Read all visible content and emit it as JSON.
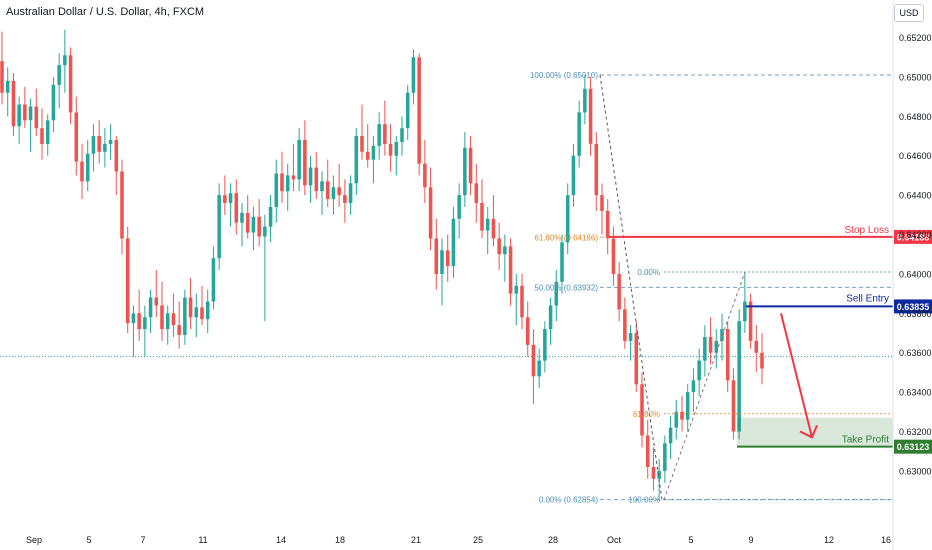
{
  "header": {
    "title": "Australian Dollar / U.S. Dollar, 4h, FXCM",
    "currency_button": "USD"
  },
  "colors": {
    "up": "#26a69a",
    "down": "#ef5350",
    "stop_loss": "#f23645",
    "sell_entry": "#0e2a9e",
    "take_profit": "#2e7d32",
    "fib_blue": "#4a90b8",
    "fib_orange": "#e08a2d",
    "arrow": "#f23645"
  },
  "chart_data": {
    "type": "candlestick",
    "ylim": [
      0.627,
      0.6535
    ],
    "y_ticks": [
      "0.63000",
      "0.63200",
      "0.63400",
      "0.63600",
      "0.63800",
      "0.64000",
      "0.64200",
      "0.64400",
      "0.64600",
      "0.64800",
      "0.65000",
      "0.65200"
    ],
    "x_ticks": [
      "Sep",
      "5",
      "7",
      "11",
      "14",
      "18",
      "21",
      "25",
      "28",
      "Oct",
      "5",
      "9",
      "12",
      "16"
    ],
    "current_price_line": 0.6358,
    "levels": [
      {
        "name": "Stop Loss",
        "price": 0.64188,
        "label": "0.64188"
      },
      {
        "name": "Sell Entry",
        "price": 0.63835,
        "label": "0.63835"
      },
      {
        "name": "Take Profit",
        "price": 0.63123,
        "label": "0.63123"
      }
    ],
    "fib_retracement_1": {
      "levels": [
        {
          "label": "100.00% (0.65010)",
          "price": 0.6501
        },
        {
          "label": "61.80% (0.64186)",
          "price": 0.64186
        },
        {
          "label": "50.00% (0.63932)",
          "price": 0.63932
        },
        {
          "label": "0.00% (0.62854)",
          "price": 0.62854
        }
      ]
    },
    "fib_retracement_2": {
      "levels": [
        {
          "label": "0.00%",
          "price": 0.6401
        },
        {
          "label": "61.80%",
          "price": 0.6329
        },
        {
          "label": "100.00%",
          "price": 0.62854
        }
      ]
    },
    "candles": [
      [
        0.6508,
        0.6523,
        0.6486,
        0.6492
      ],
      [
        0.6492,
        0.6505,
        0.648,
        0.6498
      ],
      [
        0.6498,
        0.6502,
        0.647,
        0.6475
      ],
      [
        0.6475,
        0.649,
        0.6466,
        0.6486
      ],
      [
        0.6486,
        0.6495,
        0.6474,
        0.6478
      ],
      [
        0.6478,
        0.6489,
        0.6462,
        0.6485
      ],
      [
        0.6485,
        0.6494,
        0.647,
        0.6474
      ],
      [
        0.6474,
        0.6484,
        0.6458,
        0.6466
      ],
      [
        0.6466,
        0.6481,
        0.646,
        0.6478
      ],
      [
        0.6478,
        0.65,
        0.6472,
        0.6496
      ],
      [
        0.6496,
        0.6512,
        0.6484,
        0.6506
      ],
      [
        0.6506,
        0.6524,
        0.6492,
        0.6511
      ],
      [
        0.6511,
        0.6515,
        0.6476,
        0.6482
      ],
      [
        0.6482,
        0.649,
        0.645,
        0.6457
      ],
      [
        0.6457,
        0.6466,
        0.6438,
        0.6447
      ],
      [
        0.6447,
        0.6468,
        0.6442,
        0.6461
      ],
      [
        0.6461,
        0.6476,
        0.6452,
        0.647
      ],
      [
        0.647,
        0.6478,
        0.6456,
        0.6462
      ],
      [
        0.6462,
        0.6474,
        0.6454,
        0.6466
      ],
      [
        0.6466,
        0.6476,
        0.6458,
        0.6468
      ],
      [
        0.6468,
        0.647,
        0.644,
        0.6452
      ],
      [
        0.6452,
        0.6458,
        0.641,
        0.6418
      ],
      [
        0.6418,
        0.6424,
        0.637,
        0.6375
      ],
      [
        0.6375,
        0.6384,
        0.6358,
        0.638
      ],
      [
        0.638,
        0.6392,
        0.6366,
        0.6372
      ],
      [
        0.6372,
        0.6384,
        0.6358,
        0.6378
      ],
      [
        0.6378,
        0.6392,
        0.637,
        0.6388
      ],
      [
        0.6388,
        0.6402,
        0.6378,
        0.6384
      ],
      [
        0.6384,
        0.6396,
        0.6366,
        0.6372
      ],
      [
        0.6372,
        0.6384,
        0.6364,
        0.638
      ],
      [
        0.638,
        0.639,
        0.6368,
        0.6374
      ],
      [
        0.6374,
        0.6386,
        0.6362,
        0.6369
      ],
      [
        0.6369,
        0.6392,
        0.6364,
        0.6388
      ],
      [
        0.6388,
        0.6398,
        0.6372,
        0.6378
      ],
      [
        0.6378,
        0.639,
        0.6368,
        0.6383
      ],
      [
        0.6383,
        0.6394,
        0.6374,
        0.6377
      ],
      [
        0.6377,
        0.6392,
        0.637,
        0.6386
      ],
      [
        0.6386,
        0.6414,
        0.6382,
        0.6408
      ],
      [
        0.6408,
        0.6446,
        0.6402,
        0.644
      ],
      [
        0.644,
        0.645,
        0.643,
        0.6436
      ],
      [
        0.6436,
        0.6446,
        0.6424,
        0.6441
      ],
      [
        0.6441,
        0.6448,
        0.642,
        0.6426
      ],
      [
        0.6426,
        0.6436,
        0.6414,
        0.6431
      ],
      [
        0.6431,
        0.644,
        0.6418,
        0.6421
      ],
      [
        0.6421,
        0.6434,
        0.6412,
        0.6429
      ],
      [
        0.6429,
        0.6438,
        0.6414,
        0.6419
      ],
      [
        0.6419,
        0.643,
        0.6376,
        0.6424
      ],
      [
        0.6424,
        0.644,
        0.6416,
        0.6434
      ],
      [
        0.6434,
        0.6458,
        0.6426,
        0.6451
      ],
      [
        0.6451,
        0.6462,
        0.6436,
        0.6442
      ],
      [
        0.6442,
        0.6456,
        0.6432,
        0.645
      ],
      [
        0.645,
        0.6466,
        0.6442,
        0.6448
      ],
      [
        0.6448,
        0.6474,
        0.6442,
        0.6468
      ],
      [
        0.6468,
        0.6478,
        0.644,
        0.6445
      ],
      [
        0.6445,
        0.646,
        0.6436,
        0.6454
      ],
      [
        0.6454,
        0.6462,
        0.6438,
        0.6442
      ],
      [
        0.6442,
        0.6452,
        0.643,
        0.6447
      ],
      [
        0.6447,
        0.6458,
        0.6434,
        0.6438
      ],
      [
        0.6438,
        0.645,
        0.643,
        0.6444
      ],
      [
        0.6444,
        0.6456,
        0.6434,
        0.644
      ],
      [
        0.644,
        0.6448,
        0.6426,
        0.6436
      ],
      [
        0.6436,
        0.645,
        0.643,
        0.6446
      ],
      [
        0.6446,
        0.6474,
        0.644,
        0.647
      ],
      [
        0.647,
        0.6486,
        0.6458,
        0.6462
      ],
      [
        0.6462,
        0.6476,
        0.6454,
        0.6458
      ],
      [
        0.6458,
        0.647,
        0.6446,
        0.6465
      ],
      [
        0.6465,
        0.6482,
        0.6458,
        0.6476
      ],
      [
        0.6476,
        0.6488,
        0.646,
        0.6466
      ],
      [
        0.6466,
        0.6476,
        0.6452,
        0.646
      ],
      [
        0.646,
        0.647,
        0.645,
        0.6467
      ],
      [
        0.6467,
        0.648,
        0.646,
        0.6474
      ],
      [
        0.6474,
        0.6496,
        0.6468,
        0.6492
      ],
      [
        0.6492,
        0.6514,
        0.6486,
        0.651
      ],
      [
        0.651,
        0.6512,
        0.645,
        0.6456
      ],
      [
        0.6456,
        0.6468,
        0.6436,
        0.6444
      ],
      [
        0.6444,
        0.6454,
        0.6412,
        0.6418
      ],
      [
        0.6418,
        0.6428,
        0.6392,
        0.64
      ],
      [
        0.64,
        0.6418,
        0.6384,
        0.6412
      ],
      [
        0.6412,
        0.642,
        0.6396,
        0.6404
      ],
      [
        0.6404,
        0.6434,
        0.6398,
        0.6428
      ],
      [
        0.6428,
        0.6446,
        0.6418,
        0.644
      ],
      [
        0.644,
        0.6472,
        0.6434,
        0.6464
      ],
      [
        0.6464,
        0.647,
        0.644,
        0.6446
      ],
      [
        0.6446,
        0.6456,
        0.6426,
        0.6436
      ],
      [
        0.6436,
        0.6448,
        0.6418,
        0.6422
      ],
      [
        0.6422,
        0.6434,
        0.641,
        0.6428
      ],
      [
        0.6428,
        0.644,
        0.6414,
        0.6418
      ],
      [
        0.6418,
        0.6426,
        0.6402,
        0.641
      ],
      [
        0.641,
        0.642,
        0.6396,
        0.6414
      ],
      [
        0.6414,
        0.6418,
        0.6384,
        0.639
      ],
      [
        0.639,
        0.64,
        0.6374,
        0.6394
      ],
      [
        0.6394,
        0.64,
        0.6372,
        0.6378
      ],
      [
        0.6378,
        0.6386,
        0.6358,
        0.6364
      ],
      [
        0.6364,
        0.6372,
        0.6334,
        0.6348
      ],
      [
        0.6348,
        0.6362,
        0.6342,
        0.6356
      ],
      [
        0.6356,
        0.6376,
        0.635,
        0.6372
      ],
      [
        0.6372,
        0.6388,
        0.6364,
        0.6384
      ],
      [
        0.6384,
        0.6402,
        0.6376,
        0.6396
      ],
      [
        0.6396,
        0.642,
        0.639,
        0.6416
      ],
      [
        0.6416,
        0.6446,
        0.641,
        0.644
      ],
      [
        0.644,
        0.6466,
        0.6434,
        0.646
      ],
      [
        0.646,
        0.6488,
        0.6454,
        0.6482
      ],
      [
        0.6482,
        0.6501,
        0.6476,
        0.6494
      ],
      [
        0.6494,
        0.65,
        0.646,
        0.6466
      ],
      [
        0.6466,
        0.6472,
        0.6432,
        0.644
      ],
      [
        0.644,
        0.6446,
        0.642,
        0.6432
      ],
      [
        0.6432,
        0.6438,
        0.641,
        0.6418
      ],
      [
        0.6418,
        0.6424,
        0.6394,
        0.64
      ],
      [
        0.64,
        0.6406,
        0.6376,
        0.6382
      ],
      [
        0.6382,
        0.6388,
        0.6362,
        0.6366
      ],
      [
        0.6366,
        0.6374,
        0.6356,
        0.637
      ],
      [
        0.637,
        0.6376,
        0.634,
        0.6344
      ],
      [
        0.6344,
        0.635,
        0.6312,
        0.6318
      ],
      [
        0.6318,
        0.6326,
        0.6296,
        0.6302
      ],
      [
        0.6302,
        0.6312,
        0.629,
        0.6296
      ],
      [
        0.6296,
        0.6306,
        0.6285,
        0.63
      ],
      [
        0.63,
        0.6318,
        0.6294,
        0.6314
      ],
      [
        0.6314,
        0.6328,
        0.6306,
        0.6322
      ],
      [
        0.6322,
        0.6336,
        0.6316,
        0.633
      ],
      [
        0.633,
        0.6338,
        0.632,
        0.6326
      ],
      [
        0.6326,
        0.6344,
        0.632,
        0.634
      ],
      [
        0.634,
        0.6352,
        0.633,
        0.6346
      ],
      [
        0.6346,
        0.6362,
        0.6338,
        0.6356
      ],
      [
        0.6356,
        0.6374,
        0.6348,
        0.6368
      ],
      [
        0.6368,
        0.6378,
        0.6354,
        0.636
      ],
      [
        0.636,
        0.6372,
        0.6352,
        0.6366
      ],
      [
        0.6366,
        0.638,
        0.6356,
        0.6372
      ],
      [
        0.6372,
        0.6376,
        0.634,
        0.6346
      ],
      [
        0.6346,
        0.6352,
        0.6316,
        0.632
      ],
      [
        0.632,
        0.6382,
        0.6316,
        0.6376
      ],
      [
        0.6376,
        0.6401,
        0.637,
        0.6386
      ],
      [
        0.6386,
        0.639,
        0.6362,
        0.6366
      ],
      [
        0.6366,
        0.6374,
        0.635,
        0.636
      ],
      [
        0.636,
        0.637,
        0.6344,
        0.6352
      ]
    ]
  },
  "annotations": {
    "fib1_100": "100.00% (0.65010)",
    "fib1_618": "61.80% (0.64186)",
    "fib1_50": "50.00% (0.63932)",
    "fib1_0": "0.00% (0.62854)",
    "fib2_0": "0.00%",
    "fib2_618": "61.80%",
    "fib2_100": "100.00%",
    "stop_loss": "Stop Loss",
    "sell_entry": "Sell Entry",
    "take_profit": "Take Profit",
    "stop_loss_price": "0.64188",
    "sell_entry_price": "0.63835",
    "take_profit_price": "0.63123"
  }
}
